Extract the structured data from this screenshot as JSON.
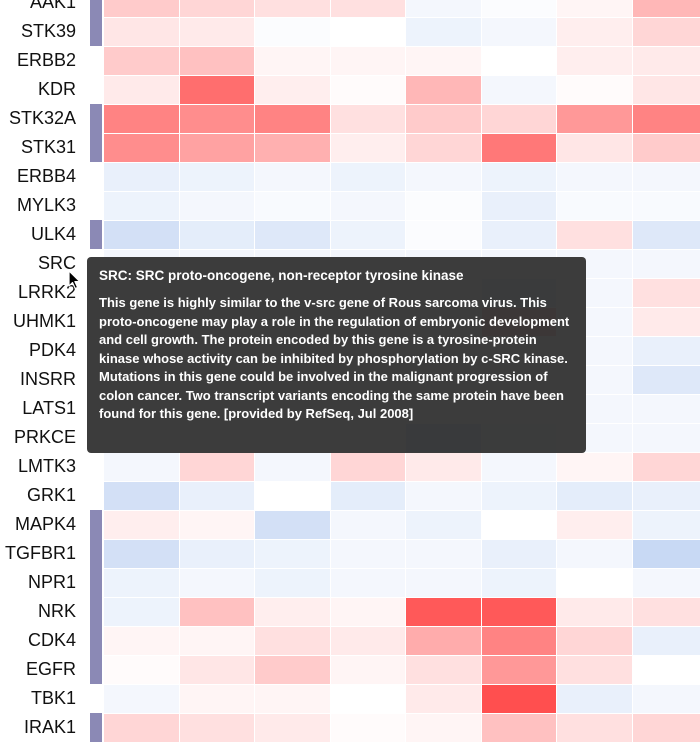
{
  "heatmap": {
    "genes": [
      "AAK1",
      "STK39",
      "ERBB2",
      "KDR",
      "STK32A",
      "STK31",
      "ERBB4",
      "MYLK3",
      "ULK4",
      "SRC",
      "LRRK2",
      "UHMK1",
      "PDK4",
      "INSRR",
      "LATS1",
      "PRKCE",
      "LMTK3",
      "GRK1",
      "MAPK4",
      "TGFBR1",
      "NPR1",
      "NRK",
      "CDK4",
      "EGFR",
      "TBK1",
      "IRAK1"
    ],
    "group_bar_color": "#8b89b5",
    "group_membership": [
      1,
      1,
      0,
      0,
      1,
      1,
      0,
      0,
      1,
      0,
      0,
      0,
      0,
      0,
      0,
      0,
      0,
      0,
      1,
      1,
      1,
      1,
      1,
      1,
      0,
      1
    ],
    "color_negative": "#2166d4",
    "color_neutral": "#ffffff",
    "color_positive": "#ff3030",
    "values": [
      [
        0.25,
        0.2,
        0.15,
        0.15,
        -0.05,
        -0.02,
        0.05,
        0.35
      ],
      [
        0.12,
        0.1,
        -0.02,
        0.0,
        -0.08,
        -0.05,
        0.08,
        0.2
      ],
      [
        0.25,
        0.3,
        0.05,
        0.05,
        0.05,
        0.0,
        0.08,
        0.1
      ],
      [
        0.1,
        0.7,
        0.08,
        0.02,
        0.35,
        -0.05,
        0.02,
        0.12
      ],
      [
        0.6,
        0.55,
        0.6,
        0.15,
        0.25,
        0.2,
        0.5,
        0.6
      ],
      [
        0.55,
        0.45,
        0.38,
        0.08,
        0.2,
        0.65,
        0.12,
        0.25
      ],
      [
        -0.1,
        -0.08,
        -0.05,
        -0.08,
        -0.05,
        -0.08,
        -0.05,
        -0.05
      ],
      [
        -0.08,
        -0.05,
        -0.03,
        -0.05,
        -0.02,
        -0.1,
        -0.03,
        -0.03
      ],
      [
        -0.2,
        -0.12,
        -0.15,
        -0.08,
        -0.02,
        -0.1,
        0.15,
        -0.15
      ],
      [
        -0.05,
        -0.05,
        -0.05,
        -0.05,
        -0.05,
        -0.05,
        -0.05,
        -0.05
      ],
      [
        -0.05,
        -0.05,
        -0.05,
        -0.05,
        -0.05,
        -0.12,
        -0.05,
        0.15
      ],
      [
        -0.05,
        -0.05,
        -0.05,
        -0.05,
        -0.05,
        0.35,
        -0.05,
        0.1
      ],
      [
        -0.05,
        -0.05,
        -0.05,
        -0.05,
        -0.05,
        -0.05,
        -0.05,
        -0.1
      ],
      [
        -0.05,
        -0.05,
        -0.05,
        -0.05,
        -0.05,
        -0.05,
        -0.05,
        -0.15
      ],
      [
        -0.05,
        -0.05,
        -0.05,
        -0.05,
        -0.05,
        -0.05,
        -0.05,
        -0.05
      ],
      [
        -0.05,
        -0.05,
        -0.05,
        -0.05,
        -0.18,
        -0.08,
        -0.05,
        -0.05
      ],
      [
        -0.05,
        0.2,
        -0.05,
        0.2,
        0.1,
        -0.05,
        0.05,
        0.2
      ],
      [
        -0.2,
        -0.1,
        0.0,
        -0.12,
        -0.05,
        -0.08,
        -0.12,
        -0.1
      ],
      [
        0.08,
        0.05,
        -0.2,
        -0.05,
        -0.08,
        0.0,
        0.08,
        -0.08
      ],
      [
        -0.2,
        -0.1,
        -0.08,
        -0.05,
        -0.05,
        -0.1,
        -0.05,
        -0.25
      ],
      [
        -0.08,
        -0.05,
        -0.08,
        -0.05,
        -0.05,
        -0.08,
        0.0,
        -0.05
      ],
      [
        -0.08,
        0.3,
        0.08,
        0.05,
        0.8,
        0.8,
        0.1,
        0.15
      ],
      [
        0.05,
        0.05,
        0.15,
        0.1,
        0.4,
        0.6,
        0.2,
        -0.1
      ],
      [
        0.02,
        0.12,
        0.25,
        0.05,
        0.15,
        0.5,
        0.15,
        0.0
      ],
      [
        -0.05,
        0.05,
        0.05,
        0.0,
        0.1,
        0.85,
        -0.1,
        -0.05
      ],
      [
        0.2,
        0.15,
        0.1,
        0.02,
        0.05,
        0.3,
        0.15,
        0.2
      ]
    ]
  },
  "tooltip": {
    "title": "SRC: SRC proto-oncogene, non-receptor tyrosine kinase",
    "body": "This gene is highly similar to the v-src gene of Rous sarcoma virus. This proto-oncogene may play a role in the regulation of embryonic development and cell growth. The protein encoded by this gene is a tyrosine-protein kinase whose activity can be inhibited by phosphorylation by c-SRC kinase. Mutations in this gene could be involved in the malignant progression of colon cancer. Two transcript variants encoding the same protein have been found for this gene. [provided by RefSeq, Jul 2008]"
  }
}
